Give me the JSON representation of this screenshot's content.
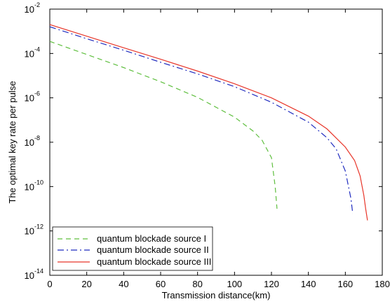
{
  "chart_data": {
    "type": "line",
    "title": "",
    "xlabel": "Transmission distance(km)",
    "ylabel": "The optimal key rate per pulse",
    "xlim": [
      0,
      180
    ],
    "ylim": [
      1e-14,
      0.01
    ],
    "yscale": "log",
    "grid": false,
    "legend_position": "bottom-left",
    "x_ticks": [
      "0",
      "20",
      "40",
      "60",
      "80",
      "100",
      "120",
      "140",
      "160",
      "180"
    ],
    "y_ticks": [
      {
        "base": "10",
        "exp": "-2",
        "value": 0.01
      },
      {
        "base": "10",
        "exp": "-4",
        "value": 0.0001
      },
      {
        "base": "10",
        "exp": "-6",
        "value": 1e-06
      },
      {
        "base": "10",
        "exp": "-8",
        "value": 1e-08
      },
      {
        "base": "10",
        "exp": "-10",
        "value": 1e-10
      },
      {
        "base": "10",
        "exp": "-12",
        "value": 1e-12
      },
      {
        "base": "10",
        "exp": "-14",
        "value": 1e-14
      }
    ],
    "series": [
      {
        "name": "quantum blockade source I",
        "color": "#5fbf3f",
        "style": "dashed",
        "x": [
          0,
          20,
          40,
          60,
          80,
          100,
          110,
          115,
          120,
          122,
          123
        ],
        "y": [
          0.00035,
          9e-05,
          2.3e-05,
          5.3e-06,
          1.05e-06,
          1.35e-07,
          3.2e-08,
          1.2e-08,
          2e-09,
          1e-10,
          1e-11
        ]
      },
      {
        "name": "quantum blockade source II",
        "color": "#1f2bbf",
        "style": "dashdot",
        "x": [
          0,
          20,
          40,
          60,
          80,
          100,
          120,
          140,
          150,
          155,
          160,
          163,
          164
        ],
        "y": [
          0.0016,
          0.00046,
          0.00014,
          4e-05,
          1.2e-05,
          3.2e-06,
          6.3e-07,
          8e-08,
          1.6e-08,
          5e-09,
          5e-10,
          3e-11,
          6e-12
        ]
      },
      {
        "name": "quantum blockade source III",
        "color": "#e8362a",
        "style": "solid",
        "x": [
          0,
          20,
          40,
          60,
          80,
          100,
          120,
          140,
          150,
          160,
          165,
          168,
          170,
          171,
          172
        ],
        "y": [
          0.002,
          0.0006,
          0.00018,
          5.5e-05,
          1.6e-05,
          4.3e-06,
          1e-06,
          1.5e-07,
          4e-08,
          6e-09,
          1.5e-09,
          3e-10,
          4e-11,
          1e-11,
          3e-12
        ]
      }
    ]
  }
}
